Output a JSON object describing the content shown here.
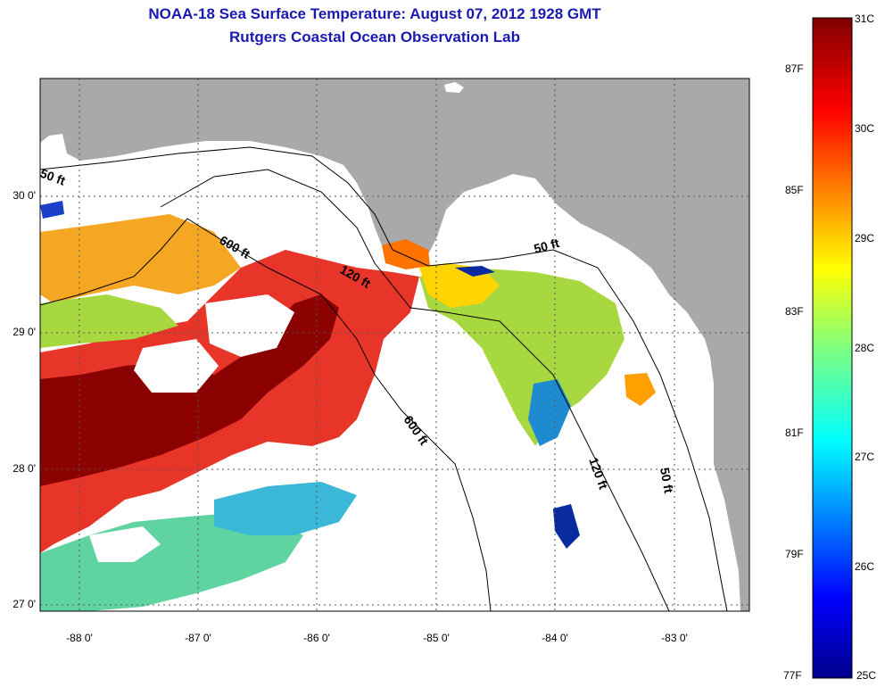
{
  "title": {
    "line1": "NOAA-18 Sea Surface Temperature:  August 07, 2012 1928 GMT",
    "line2": "Rutgers Coastal Ocean Observation Lab"
  },
  "axes": {
    "lat_labels": [
      "30 0'",
      "29 0'",
      "28 0'",
      "27 0'"
    ],
    "lon_labels": [
      "-88 0'",
      "-87 0'",
      "-86 0'",
      "-85 0'",
      "-84 0'",
      "-83 0'"
    ]
  },
  "colorbar": {
    "celsius": [
      "31C",
      "30C",
      "29C",
      "28C",
      "27C",
      "26C",
      "25C"
    ],
    "fahrenheit": [
      "87F",
      "85F",
      "83F",
      "81F",
      "79F",
      "77F"
    ],
    "range_c": [
      25,
      31
    ]
  },
  "contours": {
    "labels": [
      "50 ft",
      "600 ft",
      "120 ft",
      "50 ft",
      "600 ft",
      "120 ft",
      "50 ft"
    ]
  },
  "colors": {
    "land": "#a9a9a9",
    "title": "#1a1ab0",
    "warm": "#8b0000",
    "cool": "#00008b"
  }
}
